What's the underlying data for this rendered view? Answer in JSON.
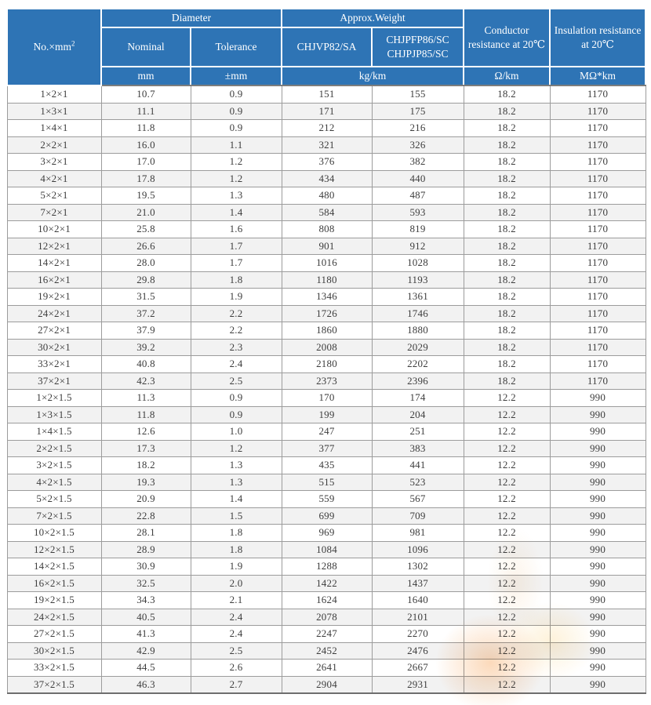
{
  "colors": {
    "header_blue": "#2E74B5",
    "stripe_gray": "#f2f2f2",
    "border_gray": "#9c9c9c",
    "watermark_orange": "#f59137"
  },
  "table": {
    "header": {
      "no_label": "No.×mm",
      "no_sup": "2",
      "diameter": "Diameter",
      "approx_weight": "Approx.Weight",
      "nominal": "Nominal",
      "tolerance": "Tolerance",
      "weight_type_a": "CHJVP82/SA",
      "weight_type_b1": "CHJPFP86/SC",
      "weight_type_b2": "CHJPJP85/SC",
      "conductor_resistance": "Conductor resistance at 20℃",
      "insulation_resistance": "Insulation resistance at 20℃",
      "unit_mm": "mm",
      "unit_tolerance": "±mm",
      "unit_weight": "kg/km",
      "unit_conductor": "Ω/km",
      "unit_insulation": "MΩ*km"
    },
    "rows": [
      [
        "1×2×1",
        "10.7",
        "0.9",
        "151",
        "155",
        "18.2",
        "1170"
      ],
      [
        "1×3×1",
        "11.1",
        "0.9",
        "171",
        "175",
        "18.2",
        "1170"
      ],
      [
        "1×4×1",
        "11.8",
        "0.9",
        "212",
        "216",
        "18.2",
        "1170"
      ],
      [
        "2×2×1",
        "16.0",
        "1.1",
        "321",
        "326",
        "18.2",
        "1170"
      ],
      [
        "3×2×1",
        "17.0",
        "1.2",
        "376",
        "382",
        "18.2",
        "1170"
      ],
      [
        "4×2×1",
        "17.8",
        "1.2",
        "434",
        "440",
        "18.2",
        "1170"
      ],
      [
        "5×2×1",
        "19.5",
        "1.3",
        "480",
        "487",
        "18.2",
        "1170"
      ],
      [
        "7×2×1",
        "21.0",
        "1.4",
        "584",
        "593",
        "18.2",
        "1170"
      ],
      [
        "10×2×1",
        "25.8",
        "1.6",
        "808",
        "819",
        "18.2",
        "1170"
      ],
      [
        "12×2×1",
        "26.6",
        "1.7",
        "901",
        "912",
        "18.2",
        "1170"
      ],
      [
        "14×2×1",
        "28.0",
        "1.7",
        "1016",
        "1028",
        "18.2",
        "1170"
      ],
      [
        "16×2×1",
        "29.8",
        "1.8",
        "1180",
        "1193",
        "18.2",
        "1170"
      ],
      [
        "19×2×1",
        "31.5",
        "1.9",
        "1346",
        "1361",
        "18.2",
        "1170"
      ],
      [
        "24×2×1",
        "37.2",
        "2.2",
        "1726",
        "1746",
        "18.2",
        "1170"
      ],
      [
        "27×2×1",
        "37.9",
        "2.2",
        "1860",
        "1880",
        "18.2",
        "1170"
      ],
      [
        "30×2×1",
        "39.2",
        "2.3",
        "2008",
        "2029",
        "18.2",
        "1170"
      ],
      [
        "33×2×1",
        "40.8",
        "2.4",
        "2180",
        "2202",
        "18.2",
        "1170"
      ],
      [
        "37×2×1",
        "42.3",
        "2.5",
        "2373",
        "2396",
        "18.2",
        "1170"
      ],
      [
        "1×2×1.5",
        "11.3",
        "0.9",
        "170",
        "174",
        "12.2",
        "990"
      ],
      [
        "1×3×1.5",
        "11.8",
        "0.9",
        "199",
        "204",
        "12.2",
        "990"
      ],
      [
        "1×4×1.5",
        "12.6",
        "1.0",
        "247",
        "251",
        "12.2",
        "990"
      ],
      [
        "2×2×1.5",
        "17.3",
        "1.2",
        "377",
        "383",
        "12.2",
        "990"
      ],
      [
        "3×2×1.5",
        "18.2",
        "1.3",
        "435",
        "441",
        "12.2",
        "990"
      ],
      [
        "4×2×1.5",
        "19.3",
        "1.3",
        "515",
        "523",
        "12.2",
        "990"
      ],
      [
        "5×2×1.5",
        "20.9",
        "1.4",
        "559",
        "567",
        "12.2",
        "990"
      ],
      [
        "7×2×1.5",
        "22.8",
        "1.5",
        "699",
        "709",
        "12.2",
        "990"
      ],
      [
        "10×2×1.5",
        "28.1",
        "1.8",
        "969",
        "981",
        "12.2",
        "990"
      ],
      [
        "12×2×1.5",
        "28.9",
        "1.8",
        "1084",
        "1096",
        "12.2",
        "990"
      ],
      [
        "14×2×1.5",
        "30.9",
        "1.9",
        "1288",
        "1302",
        "12.2",
        "990"
      ],
      [
        "16×2×1.5",
        "32.5",
        "2.0",
        "1422",
        "1437",
        "12.2",
        "990"
      ],
      [
        "19×2×1.5",
        "34.3",
        "2.1",
        "1624",
        "1640",
        "12.2",
        "990"
      ],
      [
        "24×2×1.5",
        "40.5",
        "2.4",
        "2078",
        "2101",
        "12.2",
        "990"
      ],
      [
        "27×2×1.5",
        "41.3",
        "2.4",
        "2247",
        "2270",
        "12.2",
        "990"
      ],
      [
        "30×2×1.5",
        "42.9",
        "2.5",
        "2452",
        "2476",
        "12.2",
        "990"
      ],
      [
        "33×2×1.5",
        "44.5",
        "2.6",
        "2641",
        "2667",
        "12.2",
        "990"
      ],
      [
        "37×2×1.5",
        "46.3",
        "2.7",
        "2904",
        "2931",
        "12.2",
        "990"
      ]
    ]
  }
}
